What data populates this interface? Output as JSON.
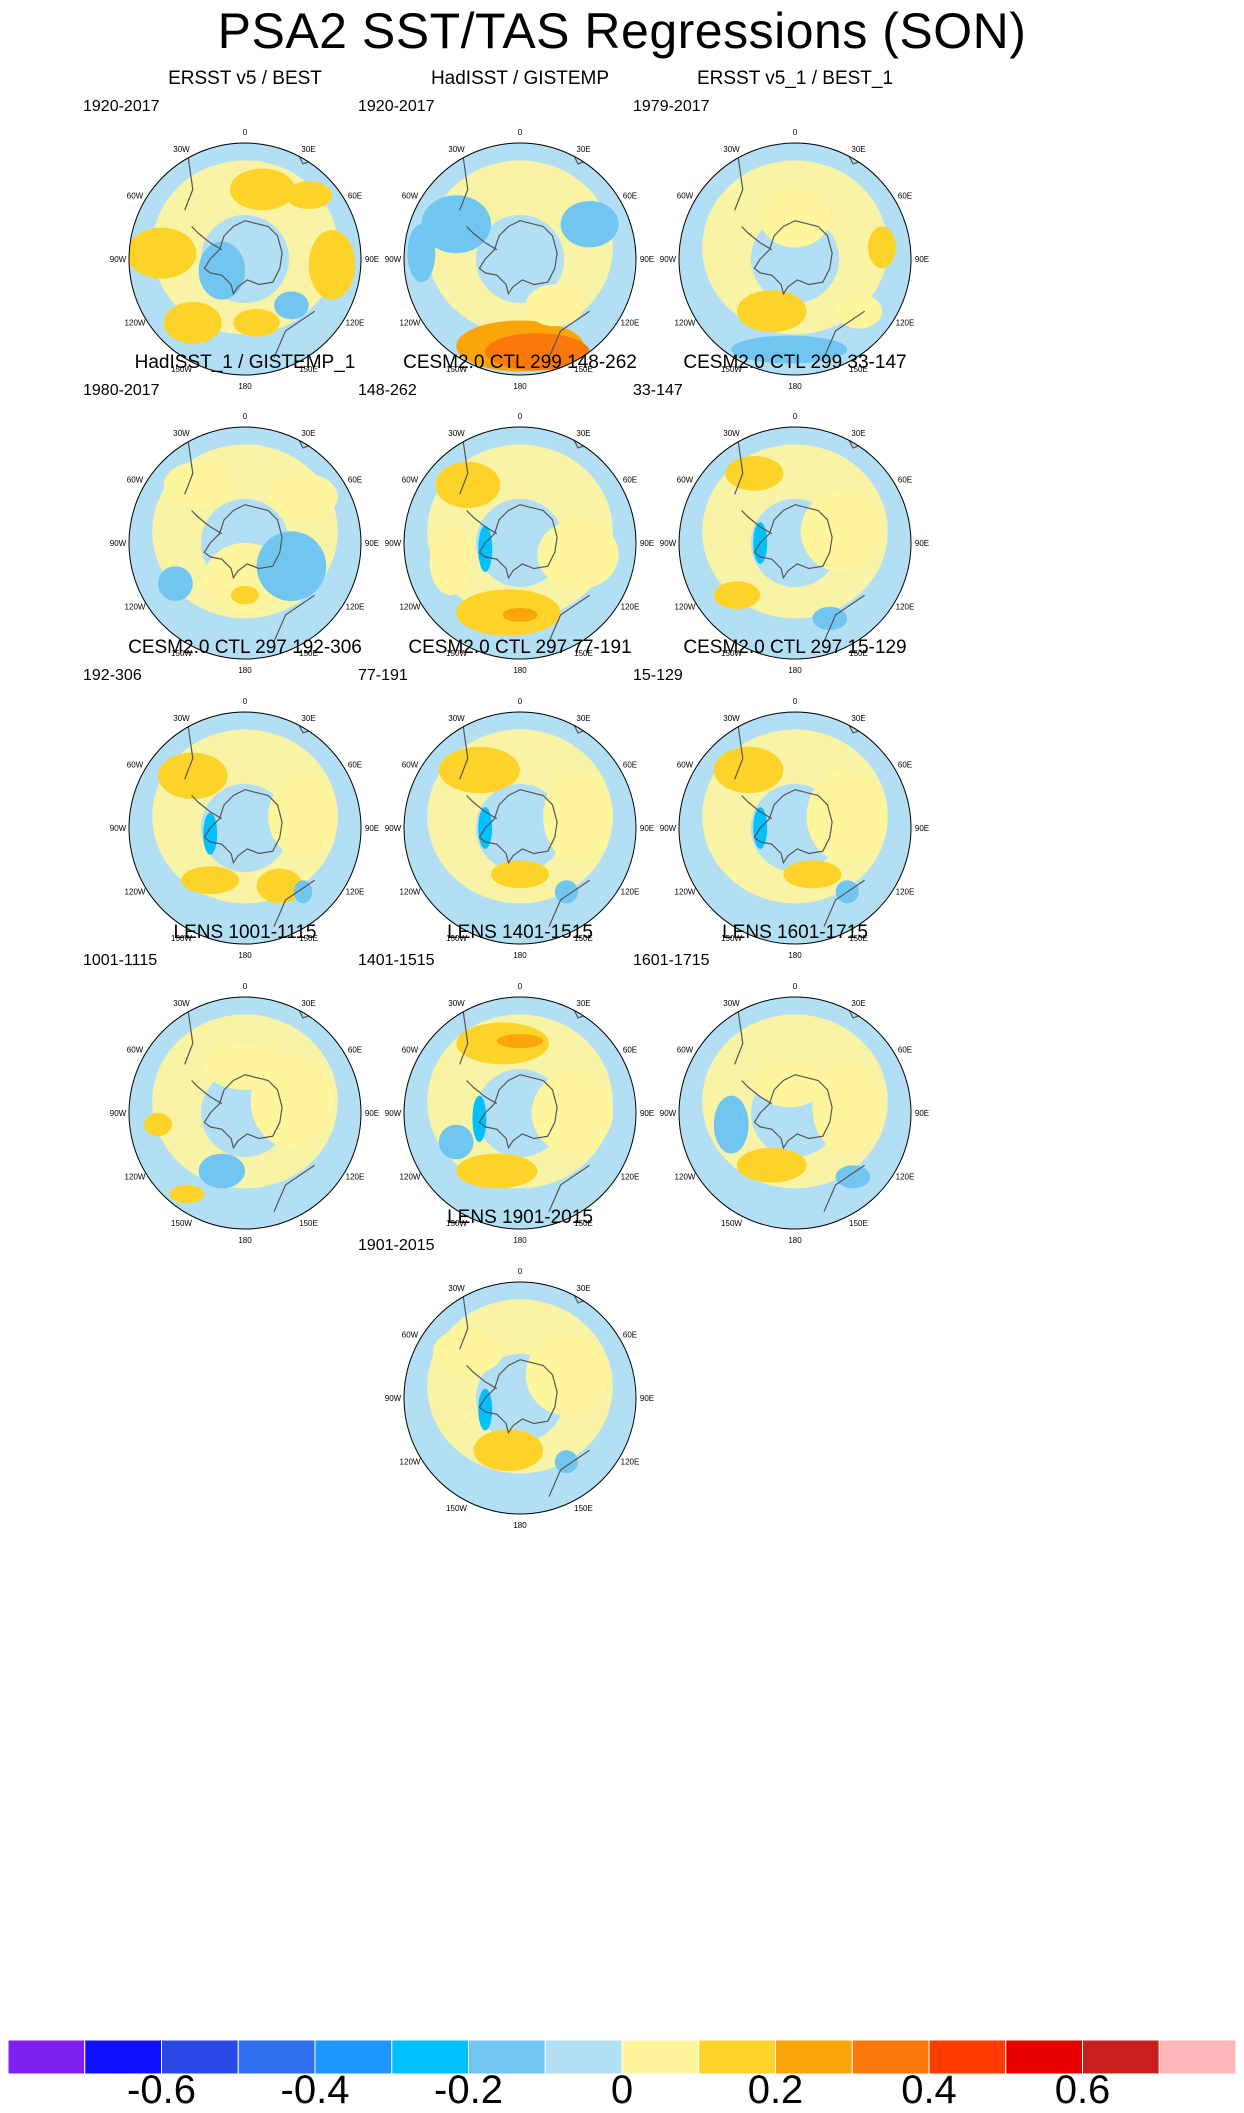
{
  "title": "PSA2 SST/TAS Regressions (SON)",
  "lon_labels": [
    "0",
    "30E",
    "60E",
    "90E",
    "120E",
    "150E",
    "180",
    "150W",
    "120W",
    "90W",
    "60W",
    "30W"
  ],
  "colors": {
    "cbar": [
      "#7f1fef",
      "#1010ff",
      "#2a48e6",
      "#2f6ff0",
      "#1e96ff",
      "#00c0ff",
      "#71c6f1",
      "#b3dff5",
      "#fff59c",
      "#fdd32a",
      "#fca50b",
      "#fb780b",
      "#ff3d00",
      "#e60000",
      "#c8201e",
      "#ffb6b9"
    ],
    "coast": "#555555"
  },
  "panels": [
    {
      "title": "ERSST v5 / BEST",
      "years": "1920-2017"
    },
    {
      "title": "HadISST / GISTEMP",
      "years": "1920-2017"
    },
    {
      "title": "ERSST v5_1 / BEST_1",
      "years": "1979-2017"
    },
    {
      "title": "HadISST_1 / GISTEMP_1",
      "years": "1980-2017"
    },
    {
      "title": "CESM2.0 CTL 299 148-262",
      "years": "148-262"
    },
    {
      "title": "CESM2.0 CTL 299 33-147",
      "years": "33-147"
    },
    {
      "title": "CESM2.0 CTL 297 192-306",
      "years": "192-306"
    },
    {
      "title": "CESM2.0 CTL 297 77-191",
      "years": "77-191"
    },
    {
      "title": "CESM2.0 CTL 297 15-129",
      "years": "15-129"
    },
    {
      "title": "LENS 1001-1115",
      "years": "1001-1115"
    },
    {
      "title": "LENS 1401-1515",
      "years": "1401-1515"
    },
    {
      "title": "LENS 1601-1715",
      "years": "1601-1715"
    },
    {
      "title": "LENS 1901-2015",
      "years": "1901-2015"
    }
  ],
  "colorbar": {
    "labels": [
      "-0.6",
      "-0.4",
      "-0.2",
      "0",
      "0.2",
      "0.4",
      "0.6"
    ]
  }
}
